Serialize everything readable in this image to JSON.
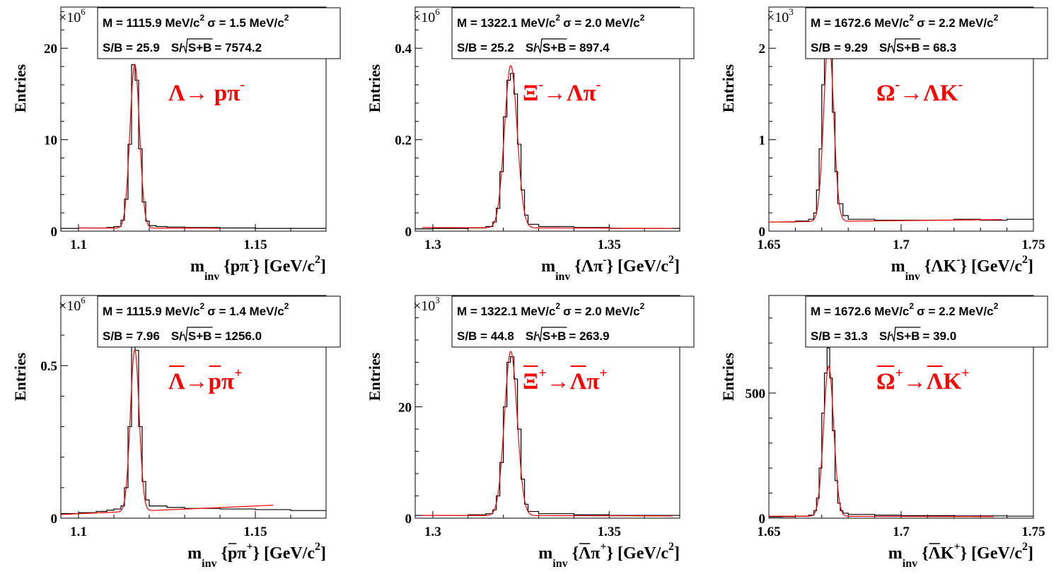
{
  "colors": {
    "histogram": "#000000",
    "fit": "#ff0000",
    "decay_label": "#ff0000",
    "background": "#ffffff"
  },
  "chart_data": [
    {
      "type": "line",
      "panel": "top-left",
      "ylabel": "Entries",
      "xlabel": {
        "main": "m",
        "sub": "inv",
        "particles": "{pπ",
        "sup": "-",
        "close": "}",
        "unit": "[GeV/c",
        "unit_sup": "2",
        "unit_close": "]"
      },
      "multiplier": {
        "base": "×10",
        "exp": "6"
      },
      "decay": {
        "parts": [
          {
            "t": "Λ→ pπ"
          },
          {
            "t": "-",
            "sup": true
          }
        ]
      },
      "stats": {
        "line1": {
          "mass": "M = 1115.9 MeV/c",
          "mass_exp": "2",
          "sigma": "σ = 1.5 MeV/c",
          "sigma_exp": "2"
        },
        "line2": {
          "sb": "S/B = 25.9",
          "sig_prefix": "S/",
          "sig_arg": "S+B",
          "sig_val": "= 7574.2"
        }
      },
      "xlim": [
        1.095,
        1.17
      ],
      "ylim": [
        0,
        24.5
      ],
      "xticks": [
        1.1,
        1.15
      ],
      "xtick_labels": [
        "1.1",
        "1.15"
      ],
      "yticks": [
        0,
        10,
        20
      ],
      "ytick_labels": [
        "0",
        "10",
        "20"
      ],
      "peak": {
        "mean": 1.1159,
        "sigma": 0.00135,
        "amp": 17.9,
        "bkg": [
          0.35,
          0.3
        ]
      },
      "fit_range": [
        1.1,
        1.14
      ],
      "series": [
        {
          "values": [
            [
              1.095,
              0.3
            ],
            [
              1.1,
              0.35
            ],
            [
              1.105,
              0.35
            ],
            [
              1.108,
              0.4
            ],
            [
              1.11,
              0.5
            ],
            [
              1.112,
              1.2
            ],
            [
              1.113,
              3.5
            ],
            [
              1.114,
              9.5
            ],
            [
              1.115,
              18.2
            ],
            [
              1.116,
              16.5
            ],
            [
              1.117,
              9.0
            ],
            [
              1.118,
              3.2
            ],
            [
              1.119,
              1.1
            ],
            [
              1.12,
              0.6
            ],
            [
              1.122,
              0.5
            ],
            [
              1.125,
              0.45
            ],
            [
              1.13,
              0.4
            ],
            [
              1.14,
              0.35
            ],
            [
              1.15,
              0.3
            ],
            [
              1.16,
              0.3
            ],
            [
              1.17,
              0.3
            ]
          ]
        }
      ]
    },
    {
      "type": "line",
      "panel": "top-middle",
      "ylabel": "Entries",
      "xlabel": {
        "main": "m",
        "sub": "inv",
        "particles": "{Λπ",
        "sup": "-",
        "close": "}",
        "unit": "[GeV/c",
        "unit_sup": "2",
        "unit_close": "]"
      },
      "multiplier": {
        "base": "×10",
        "exp": "6"
      },
      "decay": {
        "parts": [
          {
            "t": "Ξ"
          },
          {
            "t": "-",
            "sup": true
          },
          {
            "t": "→Λπ"
          },
          {
            "t": "-",
            "sup": true
          }
        ]
      },
      "stats": {
        "line1": {
          "mass": "M = 1322.1 MeV/c",
          "mass_exp": "2",
          "sigma": "σ = 2.0 MeV/c",
          "sigma_exp": "2"
        },
        "line2": {
          "sb": "S/B = 25.2",
          "sig_prefix": "S/",
          "sig_arg": "S+B",
          "sig_val": "= 897.4"
        }
      },
      "xlim": [
        1.295,
        1.37
      ],
      "ylim": [
        0,
        0.49
      ],
      "xticks": [
        1.3,
        1.35
      ],
      "xtick_labels": [
        "1.3",
        "1.35"
      ],
      "yticks": [
        0,
        0.2,
        0.4
      ],
      "ytick_labels": [
        "0",
        "0.2",
        "0.4"
      ],
      "peak": {
        "mean": 1.3221,
        "sigma": 0.0018,
        "amp": 0.355,
        "bkg": [
          0.008,
          0.006
        ]
      },
      "fit_range": [
        1.297,
        1.368
      ],
      "series": [
        {
          "values": [
            [
              1.295,
              0.005
            ],
            [
              1.3,
              0.006
            ],
            [
              1.305,
              0.006
            ],
            [
              1.31,
              0.007
            ],
            [
              1.315,
              0.01
            ],
            [
              1.317,
              0.02
            ],
            [
              1.318,
              0.05
            ],
            [
              1.319,
              0.13
            ],
            [
              1.32,
              0.25
            ],
            [
              1.321,
              0.33
            ],
            [
              1.322,
              0.345
            ],
            [
              1.323,
              0.3
            ],
            [
              1.324,
              0.19
            ],
            [
              1.325,
              0.09
            ],
            [
              1.326,
              0.035
            ],
            [
              1.327,
              0.015
            ],
            [
              1.33,
              0.01
            ],
            [
              1.34,
              0.008
            ],
            [
              1.35,
              0.006
            ],
            [
              1.36,
              0.006
            ],
            [
              1.37,
              0.005
            ]
          ]
        }
      ]
    },
    {
      "type": "line",
      "panel": "top-right",
      "ylabel": "Entries",
      "xlabel": {
        "main": "m",
        "sub": "inv",
        "particles": "{ΛK",
        "sup": "-",
        "close": "}",
        "unit": "[GeV/c",
        "unit_sup": "2",
        "unit_close": "]"
      },
      "multiplier": {
        "base": "×10",
        "exp": "3"
      },
      "decay": {
        "parts": [
          {
            "t": "Ω"
          },
          {
            "t": "-",
            "sup": true
          },
          {
            "t": "→ΛK"
          },
          {
            "t": "-",
            "sup": true
          }
        ]
      },
      "stats": {
        "line1": {
          "mass": "M = 1672.6 MeV/c",
          "mass_exp": "2",
          "sigma": "σ = 2.2 MeV/c",
          "sigma_exp": "2"
        },
        "line2": {
          "sb": "S/B = 9.29",
          "sig_prefix": "S/",
          "sig_arg": "S+B",
          "sig_val": "= 68.3"
        }
      },
      "xlim": [
        1.65,
        1.75
      ],
      "ylim": [
        0,
        2.45
      ],
      "xticks": [
        1.65,
        1.7,
        1.75
      ],
      "xtick_labels": [
        "1.65",
        "1.7",
        "1.75"
      ],
      "yticks": [
        0,
        1,
        2
      ],
      "ytick_labels": [
        "0",
        "1",
        "2"
      ],
      "peak": {
        "mean": 1.6726,
        "sigma": 0.00185,
        "amp": 2.02,
        "bkg": [
          0.1,
          0.13
        ]
      },
      "fit_range": [
        1.65,
        1.738
      ],
      "series": [
        {
          "values": [
            [
              1.65,
              0.1
            ],
            [
              1.655,
              0.1
            ],
            [
              1.66,
              0.11
            ],
            [
              1.665,
              0.13
            ],
            [
              1.667,
              0.2
            ],
            [
              1.668,
              0.45
            ],
            [
              1.669,
              0.9
            ],
            [
              1.67,
              1.6
            ],
            [
              1.671,
              2.05
            ],
            [
              1.672,
              2.2
            ],
            [
              1.673,
              1.95
            ],
            [
              1.674,
              1.3
            ],
            [
              1.675,
              0.65
            ],
            [
              1.676,
              0.3
            ],
            [
              1.678,
              0.17
            ],
            [
              1.68,
              0.13
            ],
            [
              1.69,
              0.12
            ],
            [
              1.7,
              0.12
            ],
            [
              1.71,
              0.12
            ],
            [
              1.72,
              0.13
            ],
            [
              1.73,
              0.12
            ],
            [
              1.74,
              0.13
            ],
            [
              1.75,
              0.12
            ]
          ]
        }
      ]
    },
    {
      "type": "line",
      "panel": "bottom-left",
      "ylabel": "Entries",
      "xlabel": {
        "main": "m",
        "sub": "inv",
        "particles": "{pπ",
        "particles_overline": [
          1
        ],
        "sup": "+",
        "close": "}",
        "unit": "[GeV/c",
        "unit_sup": "2",
        "unit_close": "]"
      },
      "multiplier": {
        "base": "×10",
        "exp": "6"
      },
      "decay": {
        "parts": [
          {
            "t": "Λ",
            "overline": true
          },
          {
            "t": "→"
          },
          {
            "t": "p",
            "overline": true
          },
          {
            "t": "π"
          },
          {
            "t": "+",
            "sup": true
          }
        ]
      },
      "stats": {
        "line1": {
          "mass": "M = 1115.9 MeV/c",
          "mass_exp": "2",
          "sigma": "σ = 1.4 MeV/c",
          "sigma_exp": "2"
        },
        "line2": {
          "sb": "S/B = 7.96",
          "sig_prefix": "S/",
          "sig_arg": "S+B",
          "sig_val": "= 1256.0"
        }
      },
      "xlim": [
        1.095,
        1.17
      ],
      "ylim": [
        0,
        0.73
      ],
      "xticks": [
        1.1,
        1.15
      ],
      "xtick_labels": [
        "1.1",
        "1.15"
      ],
      "yticks": [
        0,
        0.5
      ],
      "ytick_labels": [
        "0",
        "0.5"
      ],
      "peak": {
        "mean": 1.1159,
        "sigma": 0.00125,
        "amp": 0.53,
        "bkg": [
          0.012,
          0.05
        ]
      },
      "fit_range": [
        1.095,
        1.155
      ],
      "series": [
        {
          "values": [
            [
              1.095,
              0.015
            ],
            [
              1.1,
              0.018
            ],
            [
              1.105,
              0.022
            ],
            [
              1.108,
              0.026
            ],
            [
              1.11,
              0.03
            ],
            [
              1.112,
              0.04
            ],
            [
              1.113,
              0.1
            ],
            [
              1.114,
              0.3
            ],
            [
              1.115,
              0.58
            ],
            [
              1.116,
              0.55
            ],
            [
              1.117,
              0.3
            ],
            [
              1.118,
              0.12
            ],
            [
              1.119,
              0.06
            ],
            [
              1.12,
              0.04
            ],
            [
              1.125,
              0.035
            ],
            [
              1.13,
              0.032
            ],
            [
              1.14,
              0.03
            ],
            [
              1.15,
              0.028
            ],
            [
              1.16,
              0.025
            ],
            [
              1.17,
              0.025
            ]
          ]
        }
      ]
    },
    {
      "type": "line",
      "panel": "bottom-middle",
      "ylabel": "Entries",
      "xlabel": {
        "main": "m",
        "sub": "inv",
        "particles": "{Λπ",
        "particles_overline": [
          1
        ],
        "sup": "+",
        "close": "}",
        "unit": "[GeV/c",
        "unit_sup": "2",
        "unit_close": "]"
      },
      "multiplier": {
        "base": "×10",
        "exp": "3"
      },
      "decay": {
        "parts": [
          {
            "t": "Ξ",
            "overline": true
          },
          {
            "t": "+",
            "sup": true
          },
          {
            "t": "→"
          },
          {
            "t": "Λ",
            "overline": true
          },
          {
            "t": "π"
          },
          {
            "t": "+",
            "sup": true
          }
        ]
      },
      "stats": {
        "line1": {
          "mass": "M = 1322.1 MeV/c",
          "mass_exp": "2",
          "sigma": "σ = 2.0 MeV/c",
          "sigma_exp": "2"
        },
        "line2": {
          "sb": "S/B = 44.8",
          "sig_prefix": "S/",
          "sig_arg": "S+B",
          "sig_val": "= 263.9"
        }
      },
      "xlim": [
        1.295,
        1.37
      ],
      "ylim": [
        0,
        40
      ],
      "xticks": [
        1.3,
        1.35
      ],
      "xtick_labels": [
        "1.3",
        "1.35"
      ],
      "yticks": [
        0,
        20
      ],
      "ytick_labels": [
        "0",
        "20"
      ],
      "peak": {
        "mean": 1.3221,
        "sigma": 0.0018,
        "amp": 29.5,
        "bkg": [
          0.5,
          0.4
        ]
      },
      "fit_range": [
        1.297,
        1.368
      ],
      "series": [
        {
          "values": [
            [
              1.295,
              0.5
            ],
            [
              1.3,
              0.5
            ],
            [
              1.305,
              0.5
            ],
            [
              1.31,
              0.6
            ],
            [
              1.315,
              0.8
            ],
            [
              1.317,
              1.5
            ],
            [
              1.318,
              4
            ],
            [
              1.319,
              10
            ],
            [
              1.32,
              20
            ],
            [
              1.321,
              28
            ],
            [
              1.322,
              29
            ],
            [
              1.323,
              25
            ],
            [
              1.324,
              16
            ],
            [
              1.325,
              7
            ],
            [
              1.326,
              2.5
            ],
            [
              1.327,
              1.2
            ],
            [
              1.33,
              0.8
            ],
            [
              1.34,
              0.6
            ],
            [
              1.35,
              0.5
            ],
            [
              1.36,
              0.5
            ],
            [
              1.37,
              0.5
            ]
          ]
        }
      ]
    },
    {
      "type": "line",
      "panel": "bottom-right",
      "ylabel": "Entries",
      "xlabel": {
        "main": "m",
        "sub": "inv",
        "particles": "{ΛK",
        "particles_overline": [
          1
        ],
        "sup": "+",
        "close": "}",
        "unit": "[GeV/c",
        "unit_sup": "2",
        "unit_close": "]"
      },
      "multiplier": null,
      "decay": {
        "parts": [
          {
            "t": "Ω",
            "overline": true
          },
          {
            "t": "+",
            "sup": true
          },
          {
            "t": "→"
          },
          {
            "t": "Λ",
            "overline": true
          },
          {
            "t": "K"
          },
          {
            "t": "+",
            "sup": true
          }
        ]
      },
      "stats": {
        "line1": {
          "mass": "M = 1672.6 MeV/c",
          "mass_exp": "2",
          "sigma": "σ = 2.2 MeV/c",
          "sigma_exp": "2"
        },
        "line2": {
          "sb": "S/B = 31.3",
          "sig_prefix": "S/",
          "sig_arg": "S+B",
          "sig_val": "= 39.0"
        }
      },
      "xlim": [
        1.65,
        1.75
      ],
      "ylim": [
        0,
        890
      ],
      "xticks": [
        1.65,
        1.7,
        1.75
      ],
      "xtick_labels": [
        "1.65",
        "1.7",
        "1.75"
      ],
      "yticks": [
        0,
        500
      ],
      "ytick_labels": [
        "0",
        "500"
      ],
      "peak": {
        "mean": 1.6726,
        "sigma": 0.0019,
        "amp": 600,
        "bkg": [
          8,
          6
        ]
      },
      "fit_range": [
        1.65,
        1.735
      ],
      "series": [
        {
          "values": [
            [
              1.65,
              5
            ],
            [
              1.655,
              6
            ],
            [
              1.66,
              8
            ],
            [
              1.665,
              12
            ],
            [
              1.667,
              30
            ],
            [
              1.668,
              80
            ],
            [
              1.669,
              200
            ],
            [
              1.67,
              420
            ],
            [
              1.671,
              580
            ],
            [
              1.672,
              680
            ],
            [
              1.673,
              560
            ],
            [
              1.674,
              350
            ],
            [
              1.675,
              150
            ],
            [
              1.676,
              60
            ],
            [
              1.677,
              30
            ],
            [
              1.678,
              20
            ],
            [
              1.68,
              15
            ],
            [
              1.69,
              12
            ],
            [
              1.7,
              10
            ],
            [
              1.72,
              9
            ],
            [
              1.74,
              8
            ],
            [
              1.75,
              8
            ]
          ]
        }
      ]
    }
  ]
}
